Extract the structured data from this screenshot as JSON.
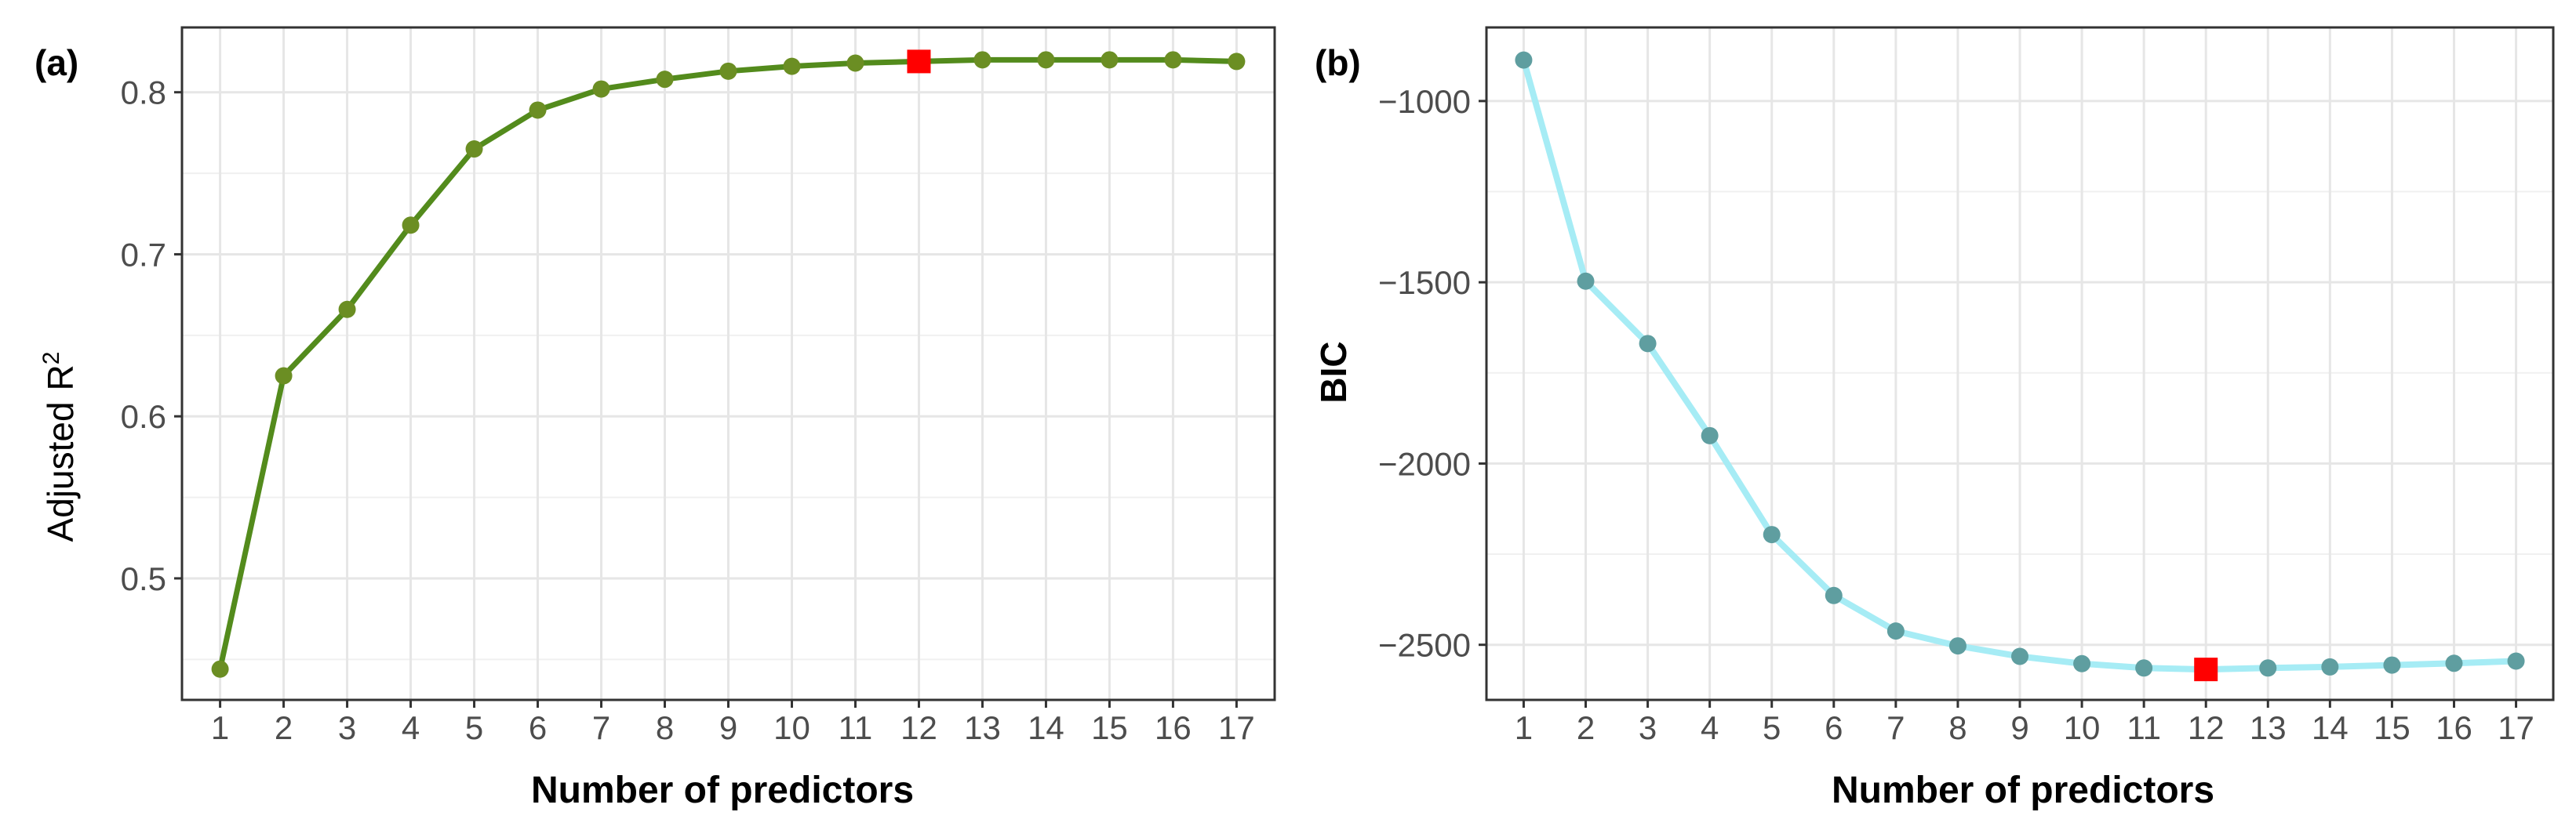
{
  "chart_data": [
    {
      "panel": "(a)",
      "type": "line",
      "xlabel": "Number of predictors",
      "ylabel": "Adjusted",
      "ylabel_sup_base": "R",
      "ylabel_sup": "2",
      "x": [
        1,
        2,
        3,
        4,
        5,
        6,
        7,
        8,
        9,
        10,
        11,
        12,
        13,
        14,
        15,
        16,
        17
      ],
      "y": [
        0.444,
        0.625,
        0.666,
        0.718,
        0.765,
        0.789,
        0.802,
        0.808,
        0.813,
        0.816,
        0.818,
        0.819,
        0.82,
        0.82,
        0.82,
        0.82,
        0.819
      ],
      "highlight": {
        "x": 12,
        "y": 0.819
      },
      "xticks": [
        "1",
        "2",
        "3",
        "4",
        "5",
        "6",
        "7",
        "8",
        "9",
        "10",
        "11",
        "12",
        "13",
        "14",
        "15",
        "16",
        "17"
      ],
      "yticks": [
        {
          "value": 0.5,
          "label": "0.5"
        },
        {
          "value": 0.6,
          "label": "0.6"
        },
        {
          "value": 0.7,
          "label": "0.7"
        },
        {
          "value": 0.8,
          "label": "0.8"
        }
      ],
      "xlim": [
        0.4,
        17.6
      ],
      "ylim": [
        0.425,
        0.84
      ],
      "grid": true,
      "colors": {
        "line": "#538b1c",
        "point": "#6b8e23",
        "highlight": "#ff0000"
      }
    },
    {
      "panel": "(b)",
      "type": "line",
      "xlabel": "Number of predictors",
      "ylabel": "BIC",
      "x": [
        1,
        2,
        3,
        4,
        5,
        6,
        7,
        8,
        9,
        10,
        11,
        12,
        13,
        14,
        15,
        16,
        17
      ],
      "y": [
        -887,
        -1497,
        -1669,
        -1923,
        -2196,
        -2364,
        -2462,
        -2503,
        -2532,
        -2552,
        -2564,
        -2568,
        -2564,
        -2561,
        -2556,
        -2551,
        -2545
      ],
      "highlight": {
        "x": 12,
        "y": -2568
      },
      "xticks": [
        "1",
        "2",
        "3",
        "4",
        "5",
        "6",
        "7",
        "8",
        "9",
        "10",
        "11",
        "12",
        "13",
        "14",
        "15",
        "16",
        "17"
      ],
      "yticks": [
        {
          "value": -2500,
          "label": "−2500"
        },
        {
          "value": -2000,
          "label": "−2000"
        },
        {
          "value": -1500,
          "label": "−1500"
        },
        {
          "value": -1000,
          "label": "−1000"
        }
      ],
      "xlim": [
        0.4,
        17.6
      ],
      "ylim": [
        -2652,
        -797
      ],
      "grid": true,
      "colors": {
        "line": "#a6ecf5",
        "point": "#5f9ea0",
        "highlight": "#ff0000"
      }
    }
  ]
}
